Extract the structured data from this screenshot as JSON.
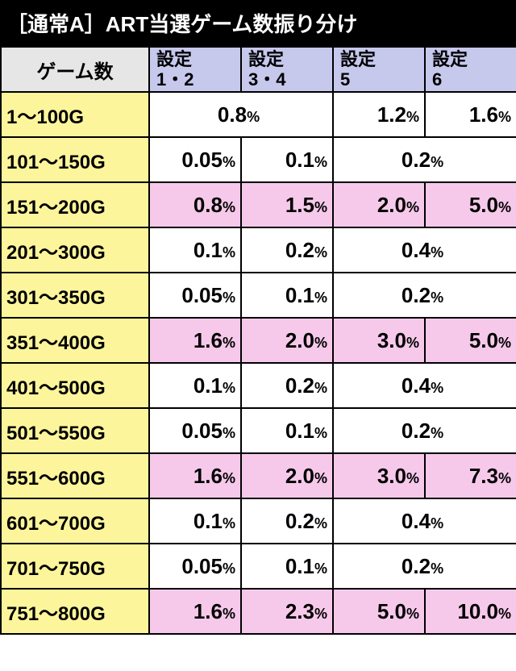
{
  "title": "［通常A］ART当選ゲーム数振り分け",
  "colors": {
    "title_bg": "#000000",
    "title_fg": "#ffffff",
    "header_row_bg": "#e6e6e6",
    "header_col_bg": "#c6c8ec",
    "label_bg": "#fdf59b",
    "highlight_bg": "#f6c9ea",
    "cell_bg": "#ffffff",
    "border": "#000000"
  },
  "typography": {
    "title_fontsize": 26,
    "header_fontsize": 22,
    "label_fontsize": 24,
    "value_num_fontsize": 26,
    "value_pct_fontsize": 18
  },
  "headers": {
    "row_label": "ゲーム数",
    "cols": [
      "設定\n1・2",
      "設定\n3・4",
      "設定\n5",
      "設定\n6"
    ]
  },
  "rows": [
    {
      "label": "1～100G",
      "cells": [
        {
          "v": "0.8",
          "span": 2,
          "hl": false
        },
        {
          "v": "1.2",
          "span": 1,
          "hl": false
        },
        {
          "v": "1.6",
          "span": 1,
          "hl": false
        }
      ]
    },
    {
      "label": "101～150G",
      "cells": [
        {
          "v": "0.05",
          "span": 1,
          "hl": false
        },
        {
          "v": "0.1",
          "span": 1,
          "hl": false
        },
        {
          "v": "0.2",
          "span": 2,
          "hl": false
        }
      ]
    },
    {
      "label": "151～200G",
      "cells": [
        {
          "v": "0.8",
          "span": 1,
          "hl": true
        },
        {
          "v": "1.5",
          "span": 1,
          "hl": true
        },
        {
          "v": "2.0",
          "span": 1,
          "hl": true
        },
        {
          "v": "5.0",
          "span": 1,
          "hl": true
        }
      ]
    },
    {
      "label": "201～300G",
      "cells": [
        {
          "v": "0.1",
          "span": 1,
          "hl": false
        },
        {
          "v": "0.2",
          "span": 1,
          "hl": false
        },
        {
          "v": "0.4",
          "span": 2,
          "hl": false
        }
      ]
    },
    {
      "label": "301～350G",
      "cells": [
        {
          "v": "0.05",
          "span": 1,
          "hl": false
        },
        {
          "v": "0.1",
          "span": 1,
          "hl": false
        },
        {
          "v": "0.2",
          "span": 2,
          "hl": false
        }
      ]
    },
    {
      "label": "351～400G",
      "cells": [
        {
          "v": "1.6",
          "span": 1,
          "hl": true
        },
        {
          "v": "2.0",
          "span": 1,
          "hl": true
        },
        {
          "v": "3.0",
          "span": 1,
          "hl": true
        },
        {
          "v": "5.0",
          "span": 1,
          "hl": true
        }
      ]
    },
    {
      "label": "401～500G",
      "cells": [
        {
          "v": "0.1",
          "span": 1,
          "hl": false
        },
        {
          "v": "0.2",
          "span": 1,
          "hl": false
        },
        {
          "v": "0.4",
          "span": 2,
          "hl": false
        }
      ]
    },
    {
      "label": "501～550G",
      "cells": [
        {
          "v": "0.05",
          "span": 1,
          "hl": false
        },
        {
          "v": "0.1",
          "span": 1,
          "hl": false
        },
        {
          "v": "0.2",
          "span": 2,
          "hl": false
        }
      ]
    },
    {
      "label": "551～600G",
      "cells": [
        {
          "v": "1.6",
          "span": 1,
          "hl": true
        },
        {
          "v": "2.0",
          "span": 1,
          "hl": true
        },
        {
          "v": "3.0",
          "span": 1,
          "hl": true
        },
        {
          "v": "7.3",
          "span": 1,
          "hl": true
        }
      ]
    },
    {
      "label": "601～700G",
      "cells": [
        {
          "v": "0.1",
          "span": 1,
          "hl": false
        },
        {
          "v": "0.2",
          "span": 1,
          "hl": false
        },
        {
          "v": "0.4",
          "span": 2,
          "hl": false
        }
      ]
    },
    {
      "label": "701～750G",
      "cells": [
        {
          "v": "0.05",
          "span": 1,
          "hl": false
        },
        {
          "v": "0.1",
          "span": 1,
          "hl": false
        },
        {
          "v": "0.2",
          "span": 2,
          "hl": false
        }
      ]
    },
    {
      "label": "751～800G",
      "cells": [
        {
          "v": "1.6",
          "span": 1,
          "hl": true
        },
        {
          "v": "2.3",
          "span": 1,
          "hl": true
        },
        {
          "v": "5.0",
          "span": 1,
          "hl": true
        },
        {
          "v": "10.0",
          "span": 1,
          "hl": true
        }
      ]
    }
  ],
  "percent_symbol": "%"
}
